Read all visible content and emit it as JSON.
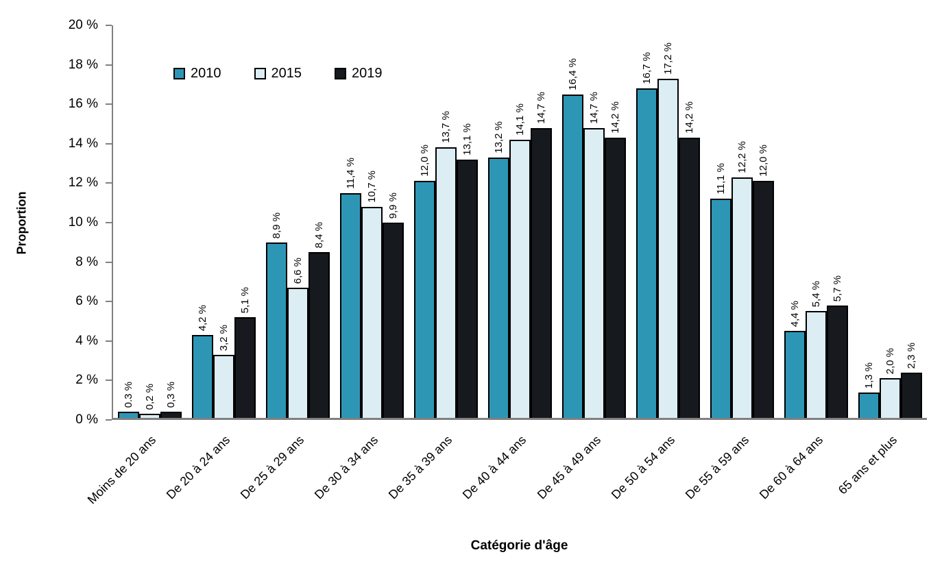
{
  "chart_data": {
    "type": "bar",
    "title": "",
    "xlabel": "Catégorie d'âge",
    "ylabel": "Proportion",
    "ylim": [
      0,
      20
    ],
    "y_tick_step": 2,
    "y_tick_labels": [
      "0 %",
      "2 %",
      "4 %",
      "6 %",
      "8 %",
      "10 %",
      "12 %",
      "14 %",
      "16 %",
      "18 %",
      "20 %"
    ],
    "grid": false,
    "legend_position": "top-left-inside",
    "categories": [
      "Moins de 20 ans",
      "De 20 à 24 ans",
      "De 25 à 29 ans",
      "De 30 à 34 ans",
      "De 35 à 39 ans",
      "De 40 à 44 ans",
      "De 45 à 49 ans",
      "De 50 à 54 ans",
      "De 55 à 59 ans",
      "De 60 à 64 ans",
      "65 ans et plus"
    ],
    "series": [
      {
        "name": "2010",
        "color": "#2E96B5",
        "values": [
          0.3,
          4.2,
          8.9,
          11.4,
          12.0,
          13.2,
          16.4,
          16.7,
          11.1,
          4.4,
          1.3
        ],
        "labels": [
          "0.3 %",
          "4,2 %",
          "8,9 %",
          "11,4 %",
          "12,0 %",
          "13,2 %",
          "16,4 %",
          "16,7 %",
          "11,1 %",
          "4,4 %",
          "1,3 %"
        ]
      },
      {
        "name": "2015",
        "color": "#DCEDF4",
        "values": [
          0.2,
          3.2,
          6.6,
          10.7,
          13.7,
          14.1,
          14.7,
          17.2,
          12.2,
          5.4,
          2.0
        ],
        "labels": [
          "0,2 %",
          "3,2 %",
          "6,6 %",
          "10,7 %",
          "13,7 %",
          "14,1 %",
          "14,7 %",
          "17,2 %",
          "12,2 %",
          "5,4 %",
          "2,0 %"
        ]
      },
      {
        "name": "2019",
        "color": "#16191D",
        "values": [
          0.3,
          5.1,
          8.4,
          9.9,
          13.1,
          14.7,
          14.2,
          14.2,
          12.0,
          5.7,
          2.3
        ],
        "labels": [
          "0,3 %",
          "5,1 %",
          "8,4 %",
          "9,9 %",
          "13,1 %",
          "14,7 %",
          "14,2 %",
          "14,2 %",
          "12,0 %",
          "5,7 %",
          "2,3 %"
        ]
      }
    ]
  },
  "colors": {
    "background": "#FFFFFF",
    "axis_line": "#808080",
    "bar_border": "#000000",
    "text": "#000000"
  }
}
